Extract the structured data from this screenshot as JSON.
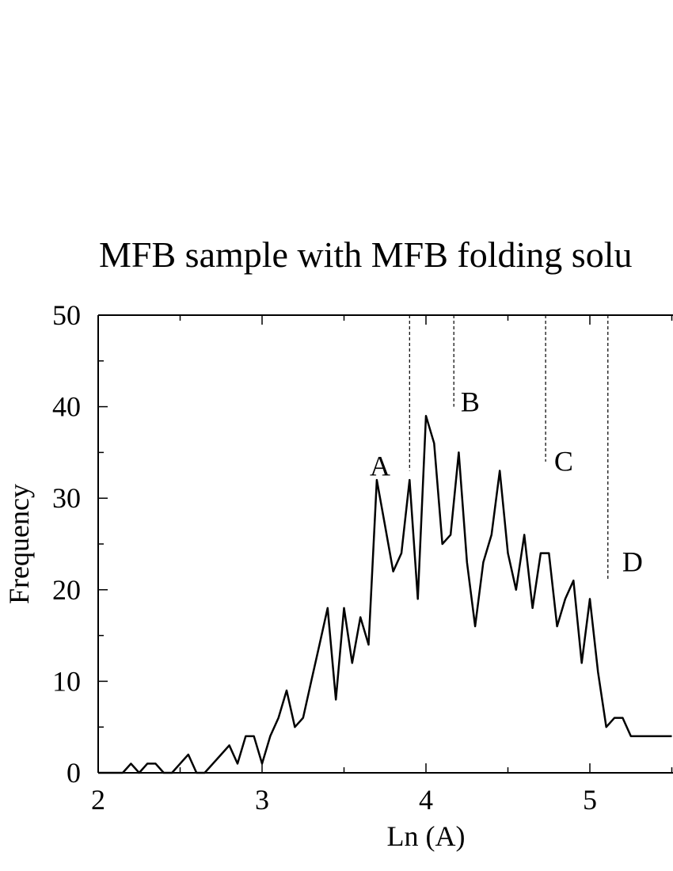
{
  "chart_data": {
    "type": "line",
    "title": "MFB sample with MFB folding solu",
    "xlabel": "Ln (A)",
    "ylabel": "Frequency",
    "xlim": [
      2,
      5.5
    ],
    "ylim": [
      0,
      50
    ],
    "x_ticks": [
      "2",
      "3",
      "4",
      "5"
    ],
    "y_ticks": [
      "0",
      "10",
      "20",
      "30",
      "40",
      "50"
    ],
    "grid": false,
    "series": [
      {
        "x": [
          2.0,
          2.15,
          2.2,
          2.25,
          2.3,
          2.35,
          2.4,
          2.45,
          2.5,
          2.55,
          2.6,
          2.65,
          2.7,
          2.75,
          2.8,
          2.85,
          2.9,
          2.95,
          3.0,
          3.05,
          3.1,
          3.15,
          3.2,
          3.25,
          3.3,
          3.35,
          3.4,
          3.45,
          3.5,
          3.55,
          3.6,
          3.65,
          3.7,
          3.75,
          3.8,
          3.85,
          3.9,
          3.95,
          4.0,
          4.05,
          4.1,
          4.15,
          4.2,
          4.25,
          4.3,
          4.35,
          4.4,
          4.45,
          4.5,
          4.55,
          4.6,
          4.65,
          4.7,
          4.75,
          4.8,
          4.85,
          4.9,
          4.95,
          5.0,
          5.05,
          5.1,
          5.15,
          5.2,
          5.25,
          5.3,
          5.35,
          5.4,
          5.45,
          5.5
        ],
        "y": [
          0,
          0,
          1,
          0,
          1,
          1,
          0,
          0,
          1,
          2,
          0,
          0,
          1,
          2,
          3,
          1,
          4,
          4,
          1,
          4,
          6,
          9,
          5,
          6,
          10,
          14,
          18,
          8,
          18,
          12,
          17,
          14,
          32,
          27,
          22,
          24,
          32,
          19,
          39,
          36,
          25,
          26,
          35,
          23,
          16,
          23,
          26,
          33,
          24,
          20,
          26,
          18,
          24,
          24,
          16,
          19,
          21,
          12,
          19,
          11,
          5,
          6,
          6,
          4,
          4,
          4,
          4,
          4,
          4
        ]
      }
    ],
    "annotations": [
      {
        "label": "A",
        "x": 3.72,
        "y": 32.5,
        "line_x": 3.9,
        "line_y_from": 33,
        "line_y_to": 50
      },
      {
        "label": "B",
        "x": 4.27,
        "y": 39.5,
        "line_x": 4.17,
        "line_y_from": 40,
        "line_y_to": 50
      },
      {
        "label": "C",
        "x": 4.84,
        "y": 33,
        "line_x": 4.73,
        "line_y_from": 34,
        "line_y_to": 50
      },
      {
        "label": "D",
        "x": 5.26,
        "y": 22,
        "line_x": 5.11,
        "line_y_from": 21,
        "line_y_to": 50
      }
    ]
  }
}
